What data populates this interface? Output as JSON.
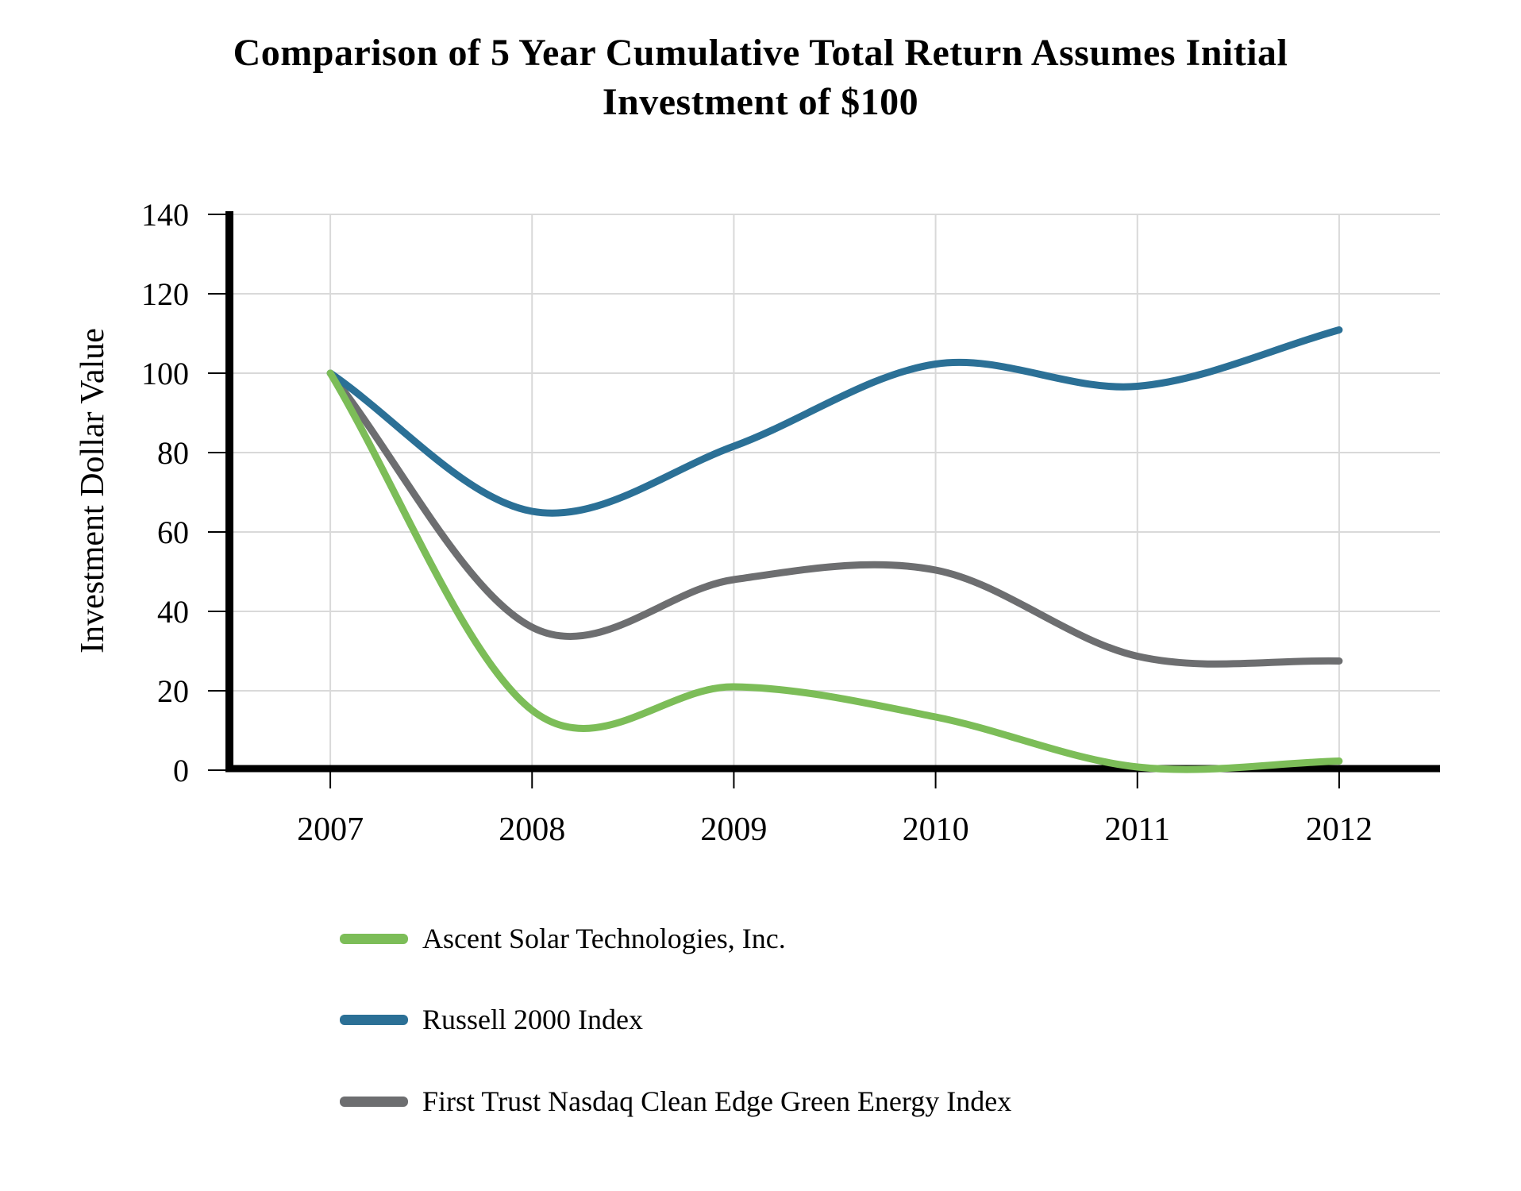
{
  "title": {
    "lines": [
      "Comparison of 5 Year Cumulative Total Return Assumes Initial",
      "Investment of $100"
    ]
  },
  "chart_data": {
    "type": "line",
    "title": "Comparison of 5 Year Cumulative Total Return Assumes Initial Investment of $100",
    "x": [
      2007,
      2008,
      2009,
      2010,
      2011,
      2012
    ],
    "series": [
      {
        "name": "Ascent Solar Technologies, Inc.",
        "color": "#7CBD58",
        "values": [
          100,
          15.1,
          21,
          13.4,
          0.8,
          2.3
        ]
      },
      {
        "name": "Russell 2000 Index",
        "color": "#2B7096",
        "values": [
          100,
          65.2,
          81.6,
          102.3,
          96.7,
          110.9
        ]
      },
      {
        "name": "First Trust Nasdaq Clean Edge Green Energy Index",
        "color": "#6D6E70",
        "values": [
          100,
          36,
          48,
          50.4,
          28.7,
          27.5
        ]
      }
    ],
    "xlabel": "",
    "ylabel": "Investment Dollar Value",
    "ylim": [
      0,
      140
    ],
    "yticks": [
      0,
      20,
      40,
      60,
      80,
      100,
      120,
      140
    ],
    "grid": true,
    "gridline_color": "#D9D9D9",
    "axis_color": "#000000",
    "smooth": true,
    "legend_position": "bottom-left",
    "draw_order": "reversed"
  }
}
